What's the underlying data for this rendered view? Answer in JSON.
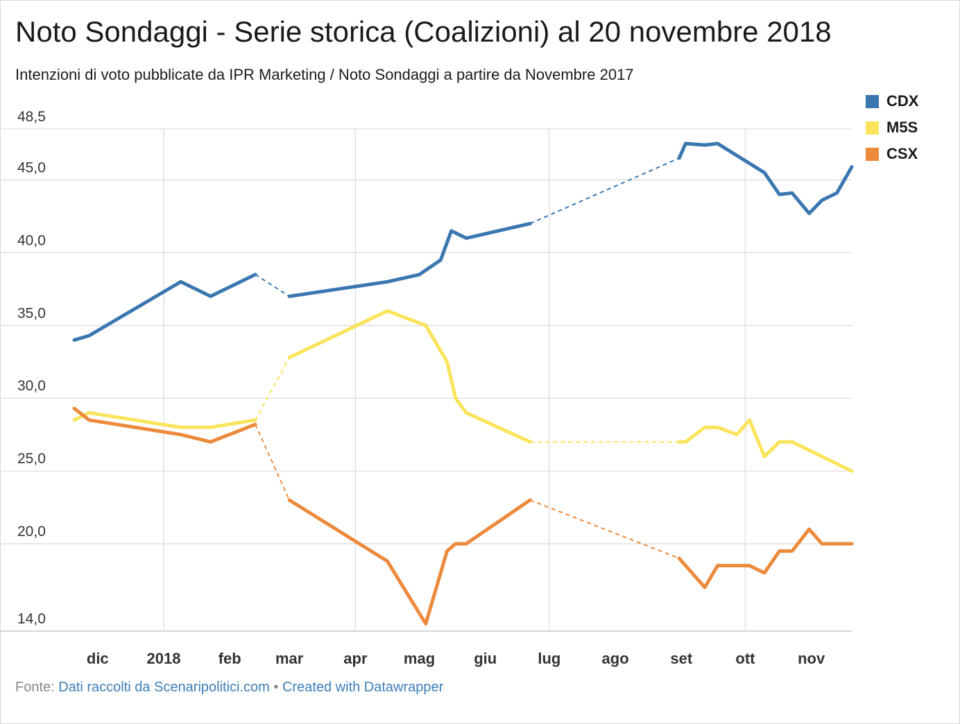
{
  "header": {
    "title": "Noto Sondaggi - Serie storica (Coalizioni) al 20 novembre 2018",
    "subtitle": "Intenzioni di voto pubblicate da IPR Marketing / Noto Sondaggi a partire da Novembre 2017"
  },
  "footer": {
    "source_prefix": "Fonte:",
    "source_link": "Dati raccolti da Scenaripolitici.com",
    "separator": "•",
    "credit_link": "Created with Datawrapper"
  },
  "chart_data": {
    "type": "line",
    "title": "Noto Sondaggi - Serie storica (Coalizioni) al 20 novembre 2018",
    "subtitle": "Intenzioni di voto pubblicate da IPR Marketing / Noto Sondaggi a partire da Novembre 2017",
    "xlabel": "",
    "ylabel": "",
    "xlim": [
      "2017-11-20",
      "2018-11-20"
    ],
    "ylim": [
      14.0,
      48.5
    ],
    "yticks": [
      14.0,
      20.0,
      25.0,
      30.0,
      35.0,
      40.0,
      45.0,
      48.5
    ],
    "ytick_labels": [
      "14,0",
      "20,0",
      "25,0",
      "30,0",
      "35,0",
      "40,0",
      "45,0",
      "48,5"
    ],
    "xticks": [
      {
        "label": "dic",
        "date": "2017-12-01",
        "gridline": false
      },
      {
        "label": "2018",
        "date": "2018-01-01",
        "gridline": true
      },
      {
        "label": "feb",
        "date": "2018-02-01",
        "gridline": false
      },
      {
        "label": "mar",
        "date": "2018-03-01",
        "gridline": false
      },
      {
        "label": "apr",
        "date": "2018-04-01",
        "gridline": true
      },
      {
        "label": "mag",
        "date": "2018-05-01",
        "gridline": false
      },
      {
        "label": "giu",
        "date": "2018-06-01",
        "gridline": false
      },
      {
        "label": "lug",
        "date": "2018-07-01",
        "gridline": true
      },
      {
        "label": "ago",
        "date": "2018-08-01",
        "gridline": false
      },
      {
        "label": "set",
        "date": "2018-09-01",
        "gridline": false
      },
      {
        "label": "ott",
        "date": "2018-10-01",
        "gridline": true
      },
      {
        "label": "nov",
        "date": "2018-11-01",
        "gridline": false
      }
    ],
    "grid": true,
    "legend_position": "top-right",
    "series": [
      {
        "name": "CDX",
        "color": "#3a76b0",
        "points": [
          {
            "date": "2017-11-20",
            "value": 34.0
          },
          {
            "date": "2017-11-27",
            "value": 34.3
          },
          {
            "date": "2018-01-09",
            "value": 38.0
          },
          {
            "date": "2018-01-23",
            "value": 37.0
          },
          {
            "date": "2018-02-13",
            "value": 38.5
          },
          {
            "date": "2018-03-01",
            "value": 37.0,
            "dashed_from_prev": true
          },
          {
            "date": "2018-04-16",
            "value": 38.0
          },
          {
            "date": "2018-05-01",
            "value": 38.5
          },
          {
            "date": "2018-05-11",
            "value": 39.5
          },
          {
            "date": "2018-05-16",
            "value": 41.5
          },
          {
            "date": "2018-05-23",
            "value": 41.0
          },
          {
            "date": "2018-06-22",
            "value": 42.0
          },
          {
            "date": "2018-08-31",
            "value": 46.5,
            "dashed_from_prev": true
          },
          {
            "date": "2018-09-03",
            "value": 47.5
          },
          {
            "date": "2018-09-12",
            "value": 47.4
          },
          {
            "date": "2018-09-18",
            "value": 47.5
          },
          {
            "date": "2018-10-10",
            "value": 45.5
          },
          {
            "date": "2018-10-17",
            "value": 44.0
          },
          {
            "date": "2018-10-23",
            "value": 44.1
          },
          {
            "date": "2018-10-31",
            "value": 42.7
          },
          {
            "date": "2018-11-06",
            "value": 43.6
          },
          {
            "date": "2018-11-13",
            "value": 44.1
          },
          {
            "date": "2018-11-20",
            "value": 45.9
          }
        ]
      },
      {
        "name": "M5S",
        "color": "#f9e45b",
        "points": [
          {
            "date": "2017-11-20",
            "value": 28.5
          },
          {
            "date": "2017-11-27",
            "value": 29.0
          },
          {
            "date": "2018-01-09",
            "value": 28.0
          },
          {
            "date": "2018-01-23",
            "value": 28.0
          },
          {
            "date": "2018-02-13",
            "value": 28.5
          },
          {
            "date": "2018-03-01",
            "value": 32.8,
            "dashed_from_prev": true
          },
          {
            "date": "2018-04-16",
            "value": 36.0
          },
          {
            "date": "2018-05-04",
            "value": 35.0
          },
          {
            "date": "2018-05-14",
            "value": 32.5
          },
          {
            "date": "2018-05-18",
            "value": 30.0
          },
          {
            "date": "2018-05-23",
            "value": 29.0
          },
          {
            "date": "2018-06-22",
            "value": 27.0
          },
          {
            "date": "2018-08-31",
            "value": 27.0,
            "dashed_from_prev": true
          },
          {
            "date": "2018-09-03",
            "value": 27.0
          },
          {
            "date": "2018-09-12",
            "value": 28.0
          },
          {
            "date": "2018-09-18",
            "value": 28.0
          },
          {
            "date": "2018-09-27",
            "value": 27.5
          },
          {
            "date": "2018-10-03",
            "value": 28.5
          },
          {
            "date": "2018-10-10",
            "value": 26.0
          },
          {
            "date": "2018-10-17",
            "value": 27.0
          },
          {
            "date": "2018-10-23",
            "value": 27.0
          },
          {
            "date": "2018-11-20",
            "value": 25.0
          }
        ]
      },
      {
        "name": "CSX",
        "color": "#ec8a3c",
        "points": [
          {
            "date": "2017-11-20",
            "value": 29.3
          },
          {
            "date": "2017-11-27",
            "value": 28.5
          },
          {
            "date": "2018-01-09",
            "value": 27.5
          },
          {
            "date": "2018-01-23",
            "value": 27.0
          },
          {
            "date": "2018-02-13",
            "value": 28.2
          },
          {
            "date": "2018-03-01",
            "value": 23.0,
            "dashed_from_prev": true
          },
          {
            "date": "2018-04-16",
            "value": 18.8
          },
          {
            "date": "2018-05-04",
            "value": 14.5
          },
          {
            "date": "2018-05-14",
            "value": 19.5
          },
          {
            "date": "2018-05-18",
            "value": 20.0
          },
          {
            "date": "2018-05-23",
            "value": 20.0
          },
          {
            "date": "2018-06-22",
            "value": 23.0
          },
          {
            "date": "2018-08-31",
            "value": 19.0,
            "dashed_from_prev": true
          },
          {
            "date": "2018-09-03",
            "value": 18.5
          },
          {
            "date": "2018-09-12",
            "value": 17.0
          },
          {
            "date": "2018-09-18",
            "value": 18.5
          },
          {
            "date": "2018-10-03",
            "value": 18.5
          },
          {
            "date": "2018-10-10",
            "value": 18.0
          },
          {
            "date": "2018-10-17",
            "value": 19.5
          },
          {
            "date": "2018-10-23",
            "value": 19.5
          },
          {
            "date": "2018-10-31",
            "value": 21.0
          },
          {
            "date": "2018-11-06",
            "value": 20.0
          },
          {
            "date": "2018-11-20",
            "value": 20.0
          }
        ]
      }
    ]
  }
}
